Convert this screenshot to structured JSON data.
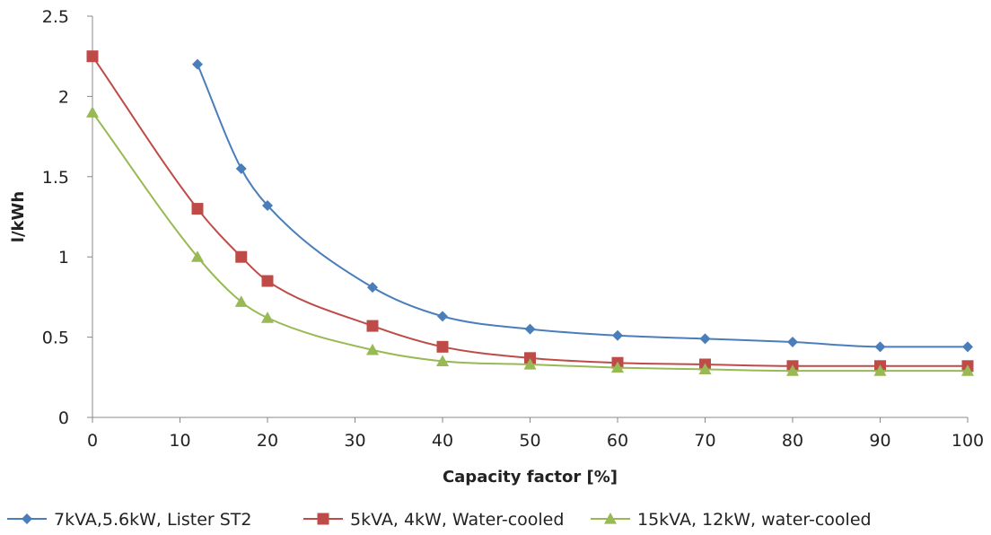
{
  "chart_data": {
    "type": "line",
    "xlabel": "Capacity factor [%]",
    "ylabel": "l/kWh",
    "xlim": [
      0,
      100
    ],
    "ylim": [
      0,
      2.5
    ],
    "xticks": [
      0,
      10,
      20,
      30,
      40,
      50,
      60,
      70,
      80,
      90,
      100
    ],
    "yticks": [
      0,
      0.5,
      1,
      1.5,
      2,
      2.5
    ],
    "ytick_labels": [
      "0",
      "0.5",
      "1",
      "1.5",
      "2",
      "2.5"
    ],
    "grid": false,
    "legend_position": "bottom",
    "smooth": true,
    "series": [
      {
        "name": "7kVA,5.6kW, Lister ST2",
        "color": "#4a7ebb",
        "marker": "diamond",
        "x": [
          12,
          17,
          20,
          32,
          40,
          50,
          60,
          70,
          80,
          90,
          100
        ],
        "y": [
          2.2,
          1.55,
          1.32,
          0.81,
          0.63,
          0.55,
          0.51,
          0.49,
          0.47,
          0.44,
          0.44
        ]
      },
      {
        "name": "5kVA, 4kW, Water-cooled",
        "color": "#be4b48",
        "marker": "square",
        "x": [
          0,
          12,
          17,
          20,
          32,
          40,
          50,
          60,
          70,
          80,
          90,
          100
        ],
        "y": [
          2.25,
          1.3,
          1.0,
          0.85,
          0.57,
          0.44,
          0.37,
          0.34,
          0.33,
          0.32,
          0.32,
          0.32
        ]
      },
      {
        "name": "15kVA, 12kW, water-cooled",
        "color": "#98b954",
        "marker": "triangle",
        "x": [
          0,
          12,
          17,
          20,
          32,
          40,
          50,
          60,
          70,
          80,
          90,
          100
        ],
        "y": [
          1.9,
          1.0,
          0.72,
          0.62,
          0.42,
          0.35,
          0.33,
          0.31,
          0.3,
          0.29,
          0.29,
          0.29
        ]
      }
    ]
  }
}
